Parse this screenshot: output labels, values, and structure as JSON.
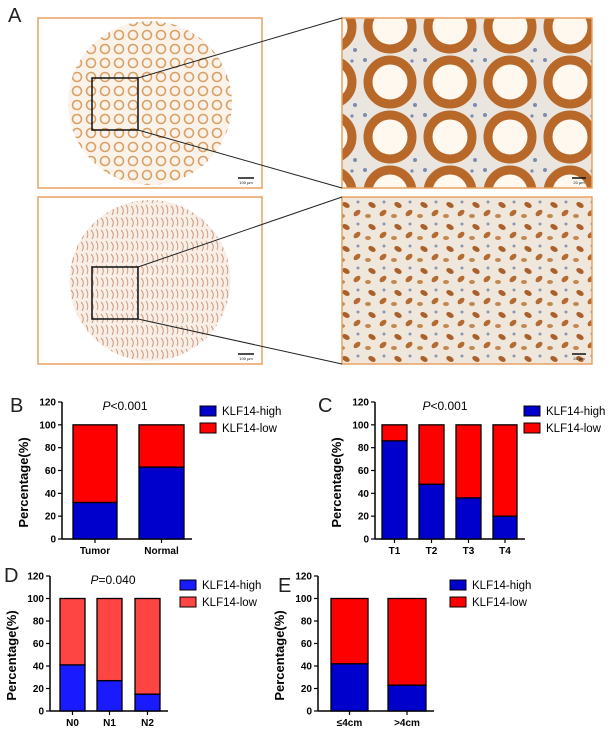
{
  "panel_labels": {
    "a": "A",
    "b": "B",
    "c": "C",
    "d": "D",
    "e": "E"
  },
  "images": {
    "scale_bar_low": "100 μm",
    "scale_bar_high": "20 μm",
    "frame_color": "#e8a060"
  },
  "colors": {
    "high": "#0000cc",
    "low": "#ff0000",
    "high_d": "#1a1aff",
    "low_d": "#ff4444"
  },
  "chart_data": [
    {
      "type": "bar",
      "stacked": true,
      "panel": "B",
      "title": "P<0.001",
      "title_italic_part": "P",
      "title_rest": "<0.001",
      "ylabel": "Percentage(%)",
      "ylim": [
        0,
        120
      ],
      "yticks": [
        0,
        20,
        40,
        60,
        80,
        100,
        120
      ],
      "categories": [
        "Tumor",
        "Normal"
      ],
      "series": [
        {
          "name": "KLF14-high",
          "values": [
            32,
            63
          ]
        },
        {
          "name": "KLF14-low",
          "values": [
            68,
            37
          ]
        }
      ],
      "legend": "top-right"
    },
    {
      "type": "bar",
      "stacked": true,
      "panel": "C",
      "title": "P<0.001",
      "title_italic_part": "P",
      "title_rest": "<0.001",
      "ylabel": "Percentage(%)",
      "ylim": [
        0,
        120
      ],
      "yticks": [
        0,
        20,
        40,
        60,
        80,
        100,
        120
      ],
      "categories": [
        "T1",
        "T2",
        "T3",
        "T4"
      ],
      "series": [
        {
          "name": "KLF14-high",
          "values": [
            86,
            48,
            36,
            20
          ]
        },
        {
          "name": "KLF14-low",
          "values": [
            14,
            52,
            64,
            80
          ]
        }
      ],
      "legend": "top-right"
    },
    {
      "type": "bar",
      "stacked": true,
      "panel": "D",
      "title": "P=0.040",
      "title_italic_part": "P",
      "title_rest": "=0.040",
      "ylabel": "Percentage(%)",
      "ylim": [
        0,
        120
      ],
      "yticks": [
        0,
        20,
        40,
        60,
        80,
        100,
        120
      ],
      "categories": [
        "N0",
        "N1",
        "N2"
      ],
      "series": [
        {
          "name": "KLF14-high",
          "values": [
            41,
            27,
            15
          ]
        },
        {
          "name": "KLF14-low",
          "values": [
            59,
            73,
            85
          ]
        }
      ],
      "legend": "top-right"
    },
    {
      "type": "bar",
      "stacked": true,
      "panel": "E",
      "title": "",
      "title_italic_part": "",
      "title_rest": "",
      "ylabel": "Percentage(%)",
      "ylim": [
        0,
        120
      ],
      "yticks": [
        0,
        20,
        40,
        60,
        80,
        100,
        120
      ],
      "categories": [
        "≤4cm",
        ">4cm"
      ],
      "series": [
        {
          "name": "KLF14-high",
          "values": [
            42,
            23
          ]
        },
        {
          "name": "KLF14-low",
          "values": [
            58,
            77
          ]
        }
      ],
      "legend": "top-right"
    }
  ]
}
